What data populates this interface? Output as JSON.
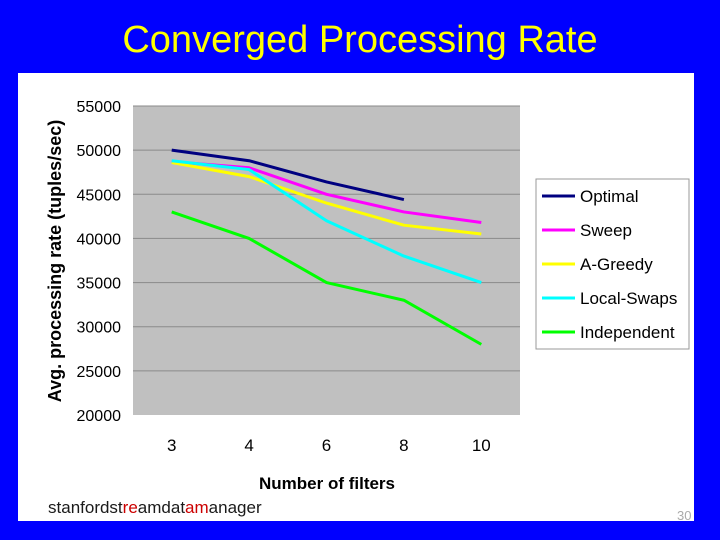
{
  "slide": {
    "title": "Converged Processing Rate",
    "footer_parts": [
      "st",
      "anfordst",
      "re",
      "amdat",
      "am",
      "anager"
    ],
    "page_number": "30"
  },
  "chart_data": {
    "type": "line",
    "x": [
      "3",
      "4",
      "6",
      "8",
      "10"
    ],
    "xlabel": "Number of filters",
    "ylabel": "Avg. processing rate (tuples/sec)",
    "ylim": [
      20000,
      55000
    ],
    "yticks": [
      20000,
      25000,
      30000,
      35000,
      40000,
      45000,
      50000,
      55000
    ],
    "grid": true,
    "legend_position": "right",
    "series": [
      {
        "name": "Optimal",
        "color": "#000080",
        "values": [
          50000,
          48800,
          46400,
          44400,
          null
        ]
      },
      {
        "name": "Sweep",
        "color": "#ff00ff",
        "values": [
          48700,
          48000,
          45000,
          43000,
          41800
        ]
      },
      {
        "name": "A-Greedy",
        "color": "#ffff00",
        "values": [
          48600,
          47000,
          44000,
          41500,
          40500
        ]
      },
      {
        "name": "Local-Swaps",
        "color": "#00ffff",
        "values": [
          48800,
          47800,
          42000,
          38000,
          35000
        ]
      },
      {
        "name": "Independent",
        "color": "#00ff00",
        "values": [
          43000,
          40000,
          35000,
          33000,
          28000
        ]
      }
    ]
  }
}
